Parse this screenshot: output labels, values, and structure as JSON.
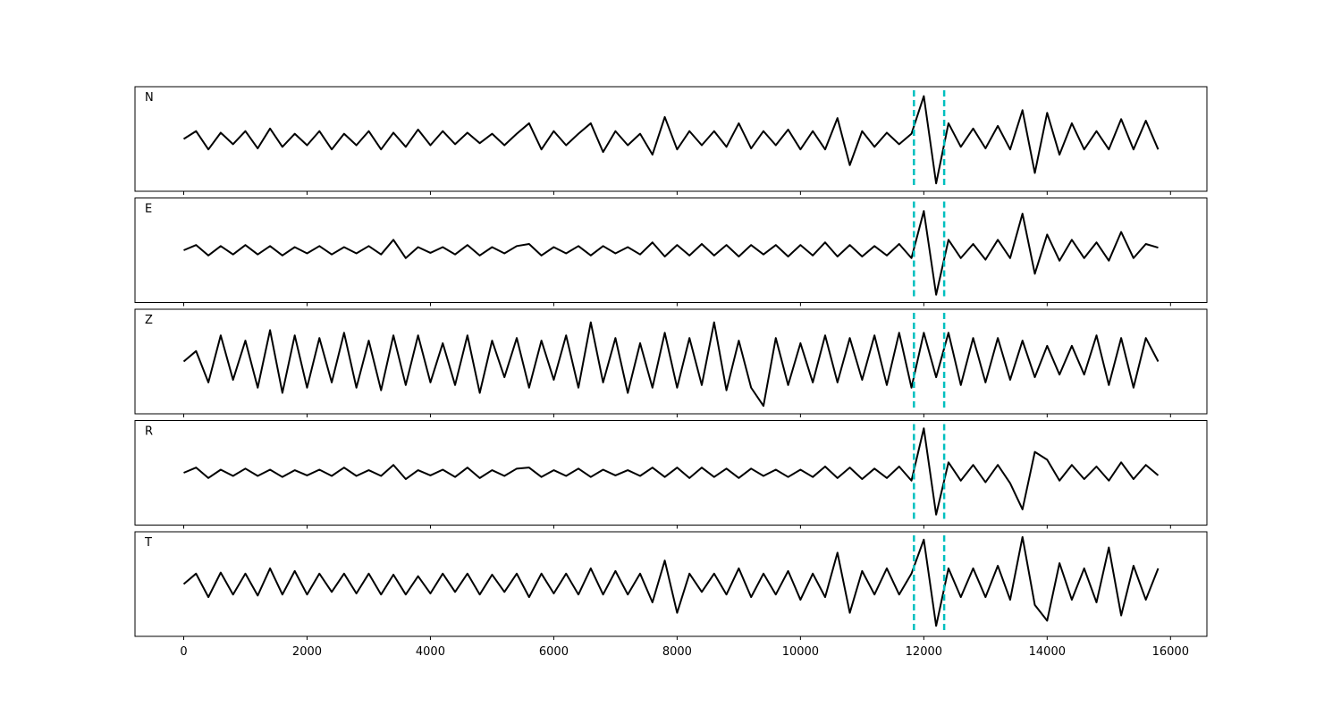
{
  "chart_data": {
    "type": "line",
    "subplots": true,
    "x": [
      0,
      200,
      400,
      600,
      800,
      1000,
      1200,
      1400,
      1600,
      1800,
      2000,
      2200,
      2400,
      2600,
      2800,
      3000,
      3200,
      3400,
      3600,
      3800,
      4000,
      4200,
      4400,
      4600,
      4800,
      5000,
      5200,
      5400,
      5600,
      5800,
      6000,
      6200,
      6400,
      6600,
      6800,
      7000,
      7200,
      7400,
      7600,
      7800,
      8000,
      8200,
      8400,
      8600,
      8800,
      9000,
      9200,
      9400,
      9600,
      9800,
      10000,
      10200,
      10400,
      10600,
      10800,
      11000,
      11200,
      11400,
      11600,
      11800,
      12000,
      12200,
      12400,
      12600,
      12800,
      13000,
      13200,
      13400,
      13600,
      13800,
      14000,
      14200,
      14400,
      14600,
      14800,
      15000,
      15200,
      15400,
      15600,
      15800
    ],
    "xlim": [
      -790,
      16590
    ],
    "xticks": [
      0,
      2000,
      4000,
      6000,
      8000,
      10000,
      12000,
      14000,
      16000
    ],
    "ylim": [
      -1,
      1
    ],
    "markers": [
      11840,
      12330
    ],
    "marker_color": "#00bfbf",
    "series": [
      {
        "name": "N",
        "color": "#000000",
        "values": [
          0,
          0.15,
          -0.2,
          0.12,
          -0.1,
          0.15,
          -0.18,
          0.2,
          -0.15,
          0.1,
          -0.12,
          0.15,
          -0.2,
          0.1,
          -0.12,
          0.15,
          -0.2,
          0.12,
          -0.15,
          0.18,
          -0.12,
          0.15,
          -0.1,
          0.12,
          -0.08,
          0.1,
          -0.12,
          0.1,
          0.3,
          -0.2,
          0.15,
          -0.12,
          0.1,
          0.3,
          -0.25,
          0.15,
          -0.12,
          0.1,
          -0.3,
          0.42,
          -0.2,
          0.15,
          -0.12,
          0.15,
          -0.15,
          0.3,
          -0.18,
          0.15,
          -0.12,
          0.18,
          -0.2,
          0.15,
          -0.2,
          0.4,
          -0.5,
          0.15,
          -0.15,
          0.12,
          -0.1,
          0.1,
          0.82,
          -0.85,
          0.3,
          -0.15,
          0.2,
          -0.18,
          0.25,
          -0.2,
          0.55,
          -0.65,
          0.5,
          -0.3,
          0.3,
          -0.2,
          0.15,
          -0.2,
          0.38,
          -0.2,
          0.35,
          -0.2
        ]
      },
      {
        "name": "E",
        "color": "#000000",
        "values": [
          0,
          0.1,
          -0.1,
          0.08,
          -0.08,
          0.1,
          -0.08,
          0.08,
          -0.1,
          0.06,
          -0.06,
          0.08,
          -0.08,
          0.06,
          -0.06,
          0.08,
          -0.08,
          0.2,
          -0.15,
          0.06,
          -0.05,
          0.06,
          -0.08,
          0.1,
          -0.1,
          0.06,
          -0.06,
          0.08,
          0.12,
          -0.1,
          0.06,
          -0.06,
          0.08,
          -0.1,
          0.08,
          -0.06,
          0.06,
          -0.08,
          0.15,
          -0.12,
          0.1,
          -0.1,
          0.12,
          -0.1,
          0.1,
          -0.12,
          0.1,
          -0.08,
          0.1,
          -0.12,
          0.1,
          -0.1,
          0.15,
          -0.12,
          0.1,
          -0.12,
          0.08,
          -0.1,
          0.12,
          -0.15,
          0.75,
          -0.85,
          0.2,
          -0.15,
          0.12,
          -0.18,
          0.2,
          -0.15,
          0.7,
          -0.45,
          0.3,
          -0.2,
          0.2,
          -0.15,
          0.15,
          -0.2,
          0.35,
          -0.15,
          0.12,
          0.05
        ]
      },
      {
        "name": "Z",
        "color": "#000000",
        "values": [
          0,
          0.2,
          -0.4,
          0.5,
          -0.35,
          0.4,
          -0.5,
          0.6,
          -0.6,
          0.5,
          -0.5,
          0.45,
          -0.4,
          0.55,
          -0.5,
          0.4,
          -0.55,
          0.5,
          -0.45,
          0.5,
          -0.4,
          0.35,
          -0.45,
          0.5,
          -0.6,
          0.4,
          -0.3,
          0.45,
          -0.5,
          0.4,
          -0.35,
          0.5,
          -0.5,
          0.75,
          -0.4,
          0.45,
          -0.6,
          0.35,
          -0.5,
          0.55,
          -0.5,
          0.45,
          -0.45,
          0.75,
          -0.55,
          0.4,
          -0.5,
          -0.85,
          0.45,
          -0.45,
          0.35,
          -0.4,
          0.5,
          -0.4,
          0.45,
          -0.35,
          0.5,
          -0.45,
          0.55,
          -0.5,
          0.55,
          -0.3,
          0.55,
          -0.45,
          0.45,
          -0.4,
          0.45,
          -0.35,
          0.4,
          -0.3,
          0.3,
          -0.25,
          0.3,
          -0.25,
          0.5,
          -0.45,
          0.45,
          -0.5,
          0.45,
          0
        ]
      },
      {
        "name": "R",
        "color": "#000000",
        "values": [
          0,
          0.1,
          -0.1,
          0.06,
          -0.06,
          0.08,
          -0.06,
          0.06,
          -0.08,
          0.05,
          -0.05,
          0.06,
          -0.06,
          0.1,
          -0.06,
          0.05,
          -0.06,
          0.15,
          -0.12,
          0.05,
          -0.05,
          0.06,
          -0.08,
          0.1,
          -0.1,
          0.05,
          -0.06,
          0.08,
          0.1,
          -0.08,
          0.05,
          -0.06,
          0.08,
          -0.08,
          0.06,
          -0.05,
          0.05,
          -0.06,
          0.1,
          -0.08,
          0.1,
          -0.1,
          0.1,
          -0.08,
          0.08,
          -0.1,
          0.08,
          -0.06,
          0.06,
          -0.08,
          0.06,
          -0.08,
          0.12,
          -0.1,
          0.1,
          -0.12,
          0.08,
          -0.1,
          0.12,
          -0.15,
          0.85,
          -0.8,
          0.2,
          -0.15,
          0.15,
          -0.18,
          0.15,
          -0.2,
          -0.7,
          0.4,
          0.25,
          -0.15,
          0.15,
          -0.12,
          0.12,
          -0.15,
          0.2,
          -0.12,
          0.15,
          -0.05
        ]
      },
      {
        "name": "T",
        "color": "#000000",
        "values": [
          0,
          0.2,
          -0.25,
          0.22,
          -0.2,
          0.2,
          -0.22,
          0.3,
          -0.2,
          0.25,
          -0.2,
          0.2,
          -0.15,
          0.2,
          -0.18,
          0.2,
          -0.2,
          0.18,
          -0.2,
          0.15,
          -0.18,
          0.2,
          -0.15,
          0.2,
          -0.2,
          0.18,
          -0.15,
          0.2,
          -0.25,
          0.2,
          -0.18,
          0.2,
          -0.2,
          0.3,
          -0.2,
          0.25,
          -0.2,
          0.2,
          -0.35,
          0.45,
          -0.55,
          0.2,
          -0.15,
          0.2,
          -0.2,
          0.3,
          -0.25,
          0.2,
          -0.2,
          0.25,
          -0.3,
          0.2,
          -0.25,
          0.6,
          -0.55,
          0.25,
          -0.2,
          0.3,
          -0.2,
          0.2,
          0.85,
          -0.8,
          0.3,
          -0.25,
          0.3,
          -0.25,
          0.35,
          -0.3,
          0.9,
          -0.4,
          -0.7,
          0.4,
          -0.3,
          0.3,
          -0.35,
          0.7,
          -0.6,
          0.35,
          -0.3,
          0.3
        ]
      }
    ]
  }
}
